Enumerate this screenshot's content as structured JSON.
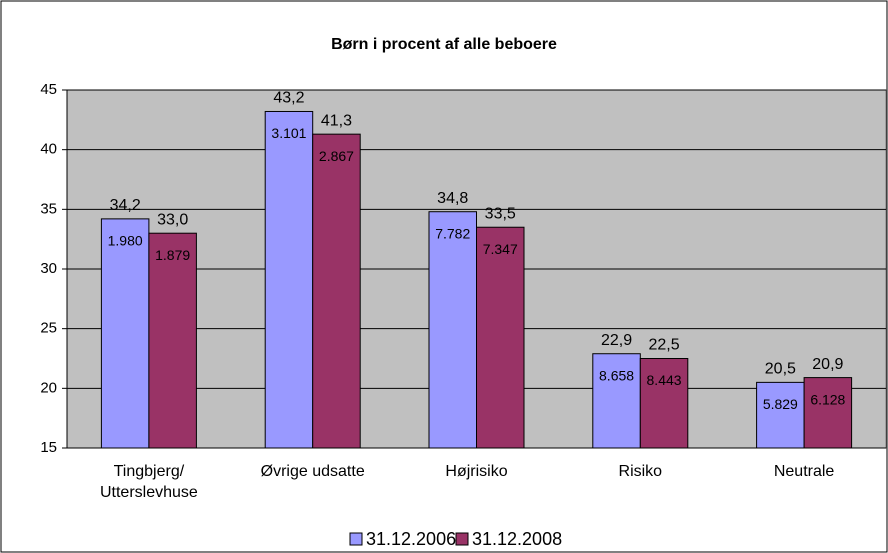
{
  "chart_data": {
    "type": "bar",
    "title": "Børn i procent af alle beboere",
    "categories": [
      "Tingbjerg/\nUtterslevhuse",
      "Øvrige udsatte",
      "Højrisiko",
      "Risiko",
      "Neutrale"
    ],
    "series": [
      {
        "name": "31.12.2006",
        "color": "#9999ff",
        "values": [
          34.2,
          43.2,
          34.8,
          22.9,
          20.5
        ],
        "value_labels": [
          "34,2",
          "43,2",
          "34,8",
          "22,9",
          "20,5"
        ],
        "inner_labels": [
          "1.980",
          "3.101",
          "7.782",
          "8.658",
          "5.829"
        ]
      },
      {
        "name": "31.12.2008",
        "color": "#993366",
        "values": [
          33.0,
          41.3,
          33.5,
          22.5,
          20.9
        ],
        "value_labels": [
          "33,0",
          "41,3",
          "33,5",
          "22,5",
          "20,9"
        ],
        "inner_labels": [
          "1.879",
          "2.867",
          "7.347",
          "8.443",
          "6.128"
        ]
      }
    ],
    "ylim": [
      15,
      45
    ],
    "yticks": [
      15,
      20,
      25,
      30,
      35,
      40,
      45
    ],
    "grid": true,
    "legend": "bottom"
  }
}
